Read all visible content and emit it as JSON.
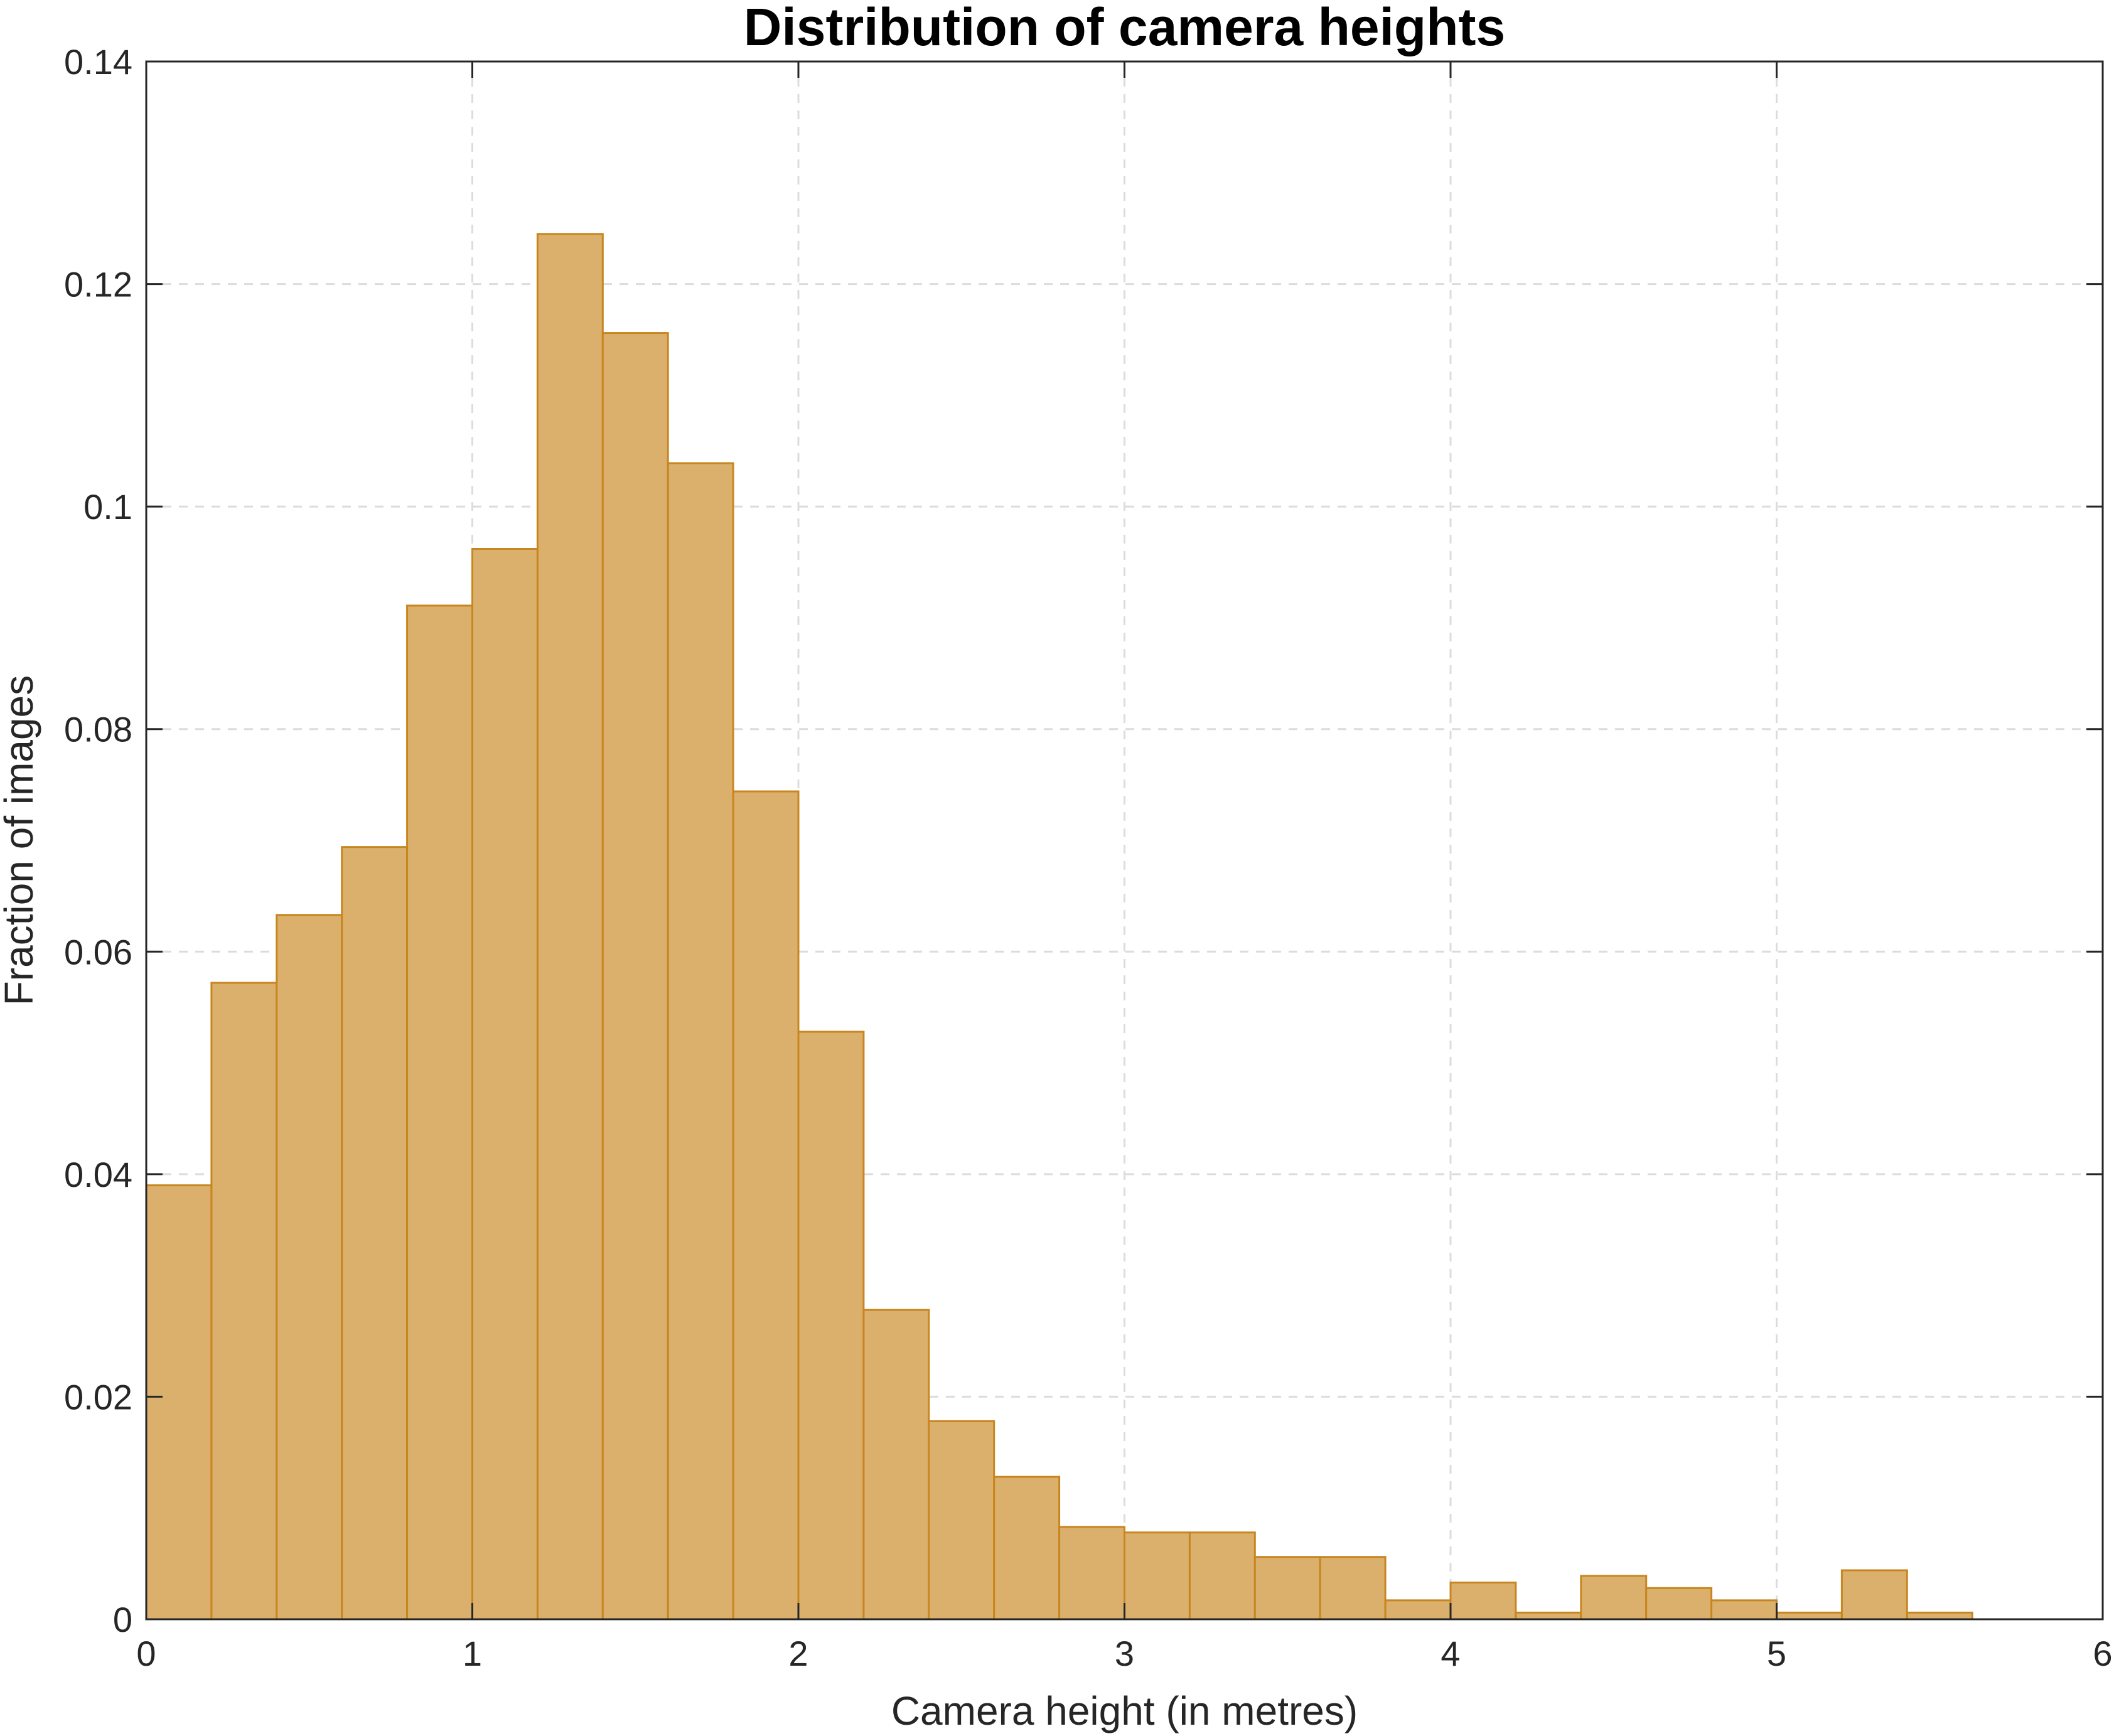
{
  "chart_data": {
    "type": "bar",
    "title": "Distribution of camera heights",
    "xlabel": "Camera height (in metres)",
    "ylabel": "Fraction of images",
    "xlim": [
      0,
      6
    ],
    "ylim": [
      0,
      0.14
    ],
    "xticks": [
      0,
      1,
      2,
      3,
      4,
      5,
      6
    ],
    "xtick_labels": [
      "0",
      "1",
      "2",
      "3",
      "4",
      "5",
      "6"
    ],
    "yticks": [
      0,
      0.02,
      0.04,
      0.06,
      0.08,
      0.1,
      0.12,
      0.14
    ],
    "ytick_labels": [
      "0",
      "0.02",
      "0.04",
      "0.06",
      "0.08",
      "0.1",
      "0.12",
      "0.14"
    ],
    "grid": true,
    "bin_width": 0.2,
    "bin_edges": [
      0,
      0.2,
      0.4,
      0.6,
      0.8,
      1.0,
      1.2,
      1.4,
      1.6,
      1.8,
      2.0,
      2.2,
      2.4,
      2.6,
      2.8,
      3.0,
      3.2,
      3.4,
      3.6,
      3.8,
      4.0,
      4.2,
      4.4,
      4.6,
      4.8,
      5.0,
      5.2,
      5.4,
      5.6
    ],
    "values": [
      0.039,
      0.0572,
      0.0633,
      0.0694,
      0.0911,
      0.0962,
      0.1245,
      0.1156,
      0.1039,
      0.0744,
      0.0528,
      0.0278,
      0.0178,
      0.0128,
      0.0083,
      0.0078,
      0.0078,
      0.0056,
      0.0056,
      0.0017,
      0.0033,
      0.0006,
      0.0039,
      0.0028,
      0.0017,
      0.0006,
      0.0044,
      0.0006
    ],
    "colors": {
      "bar_fill": "#DBB06D",
      "bar_edge": "#C8861F",
      "grid": "#DCDCDC",
      "axis": "#262626"
    }
  }
}
